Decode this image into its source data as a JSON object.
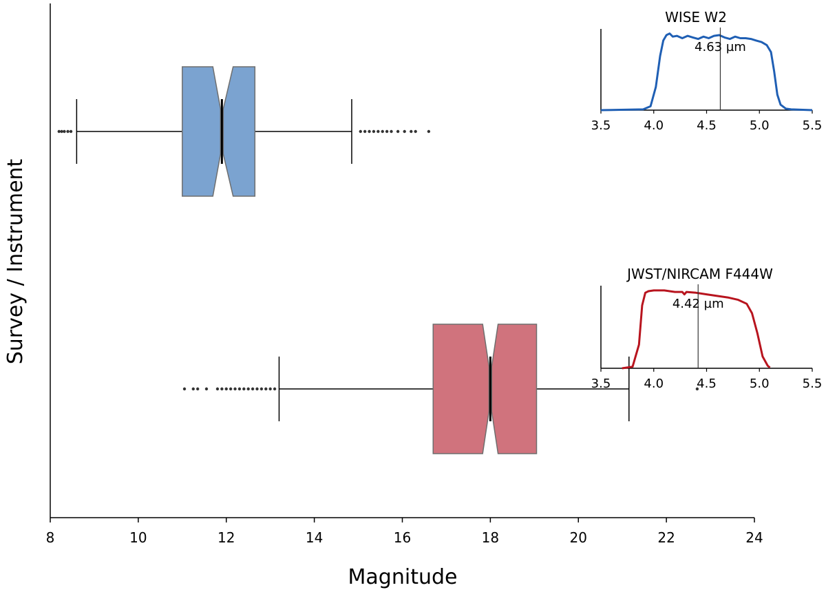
{
  "chart_data": {
    "type": "boxplot",
    "xlabel": "Magnitude",
    "ylabel": "Survey / Instrument",
    "xlim": [
      8,
      24
    ],
    "xticks": [
      8,
      10,
      12,
      14,
      16,
      18,
      20,
      22,
      24
    ],
    "horizontal": true,
    "notched": true,
    "boxes": [
      {
        "name": "WISE W2",
        "color": "#7BA3D0",
        "q1": 11.0,
        "median": 11.9,
        "q3": 12.65,
        "notch_low": 11.82,
        "notch_high": 12.03,
        "whisker_low": 8.6,
        "whisker_high": 14.85,
        "outliers": [
          8.2,
          8.26,
          8.32,
          8.4,
          8.47,
          15.05,
          15.15,
          15.25,
          15.35,
          15.45,
          15.55,
          15.65,
          15.75,
          15.9,
          16.05,
          16.2,
          16.3,
          16.6
        ]
      },
      {
        "name": "JWST/NIRCAM F444W",
        "color": "#D0737D",
        "q1": 16.7,
        "median": 18.0,
        "q3": 19.05,
        "notch_low": 17.95,
        "notch_high": 18.05,
        "whisker_low": 13.2,
        "whisker_high": 21.15,
        "outliers": [
          11.05,
          11.25,
          11.35,
          11.55,
          11.8,
          11.9,
          12.0,
          12.1,
          12.2,
          12.3,
          12.4,
          12.5,
          12.6,
          12.7,
          12.8,
          12.9,
          13.0,
          13.1,
          22.7
        ]
      }
    ],
    "insets": [
      {
        "title": "WISE W2",
        "annotation": "4.63 µm",
        "center": 4.63,
        "color": "#1F5FB4",
        "xlim": [
          3.5,
          5.5
        ],
        "ylim": [
          0,
          1.05
        ],
        "xticks": [
          "3.5",
          "4.0",
          "4.5",
          "5.0",
          "5.5"
        ],
        "curve": {
          "x": [
            3.5,
            3.9,
            3.97,
            4.02,
            4.06,
            4.09,
            4.12,
            4.15,
            4.18,
            4.22,
            4.27,
            4.32,
            4.37,
            4.42,
            4.47,
            4.52,
            4.57,
            4.62,
            4.67,
            4.72,
            4.77,
            4.82,
            4.87,
            4.92,
            4.97,
            5.02,
            5.07,
            5.11,
            5.14,
            5.17,
            5.2,
            5.25,
            5.3,
            5.5
          ],
          "y": [
            0.0,
            0.01,
            0.05,
            0.3,
            0.7,
            0.9,
            0.97,
            0.99,
            0.95,
            0.96,
            0.93,
            0.96,
            0.94,
            0.92,
            0.95,
            0.93,
            0.96,
            0.97,
            0.94,
            0.92,
            0.95,
            0.93,
            0.93,
            0.92,
            0.9,
            0.88,
            0.84,
            0.75,
            0.5,
            0.2,
            0.07,
            0.02,
            0.01,
            0.0
          ]
        }
      },
      {
        "title": "JWST/NIRCAM F444W",
        "annotation": "4.42 µm",
        "center": 4.42,
        "color": "#B8141E",
        "xlim": [
          3.5,
          5.5
        ],
        "ylim": [
          0,
          1.05
        ],
        "xticks": [
          "3.5",
          "4.0",
          "4.5",
          "5.0",
          "5.5"
        ],
        "curve": {
          "x": [
            3.7,
            3.8,
            3.86,
            3.89,
            3.92,
            3.95,
            4.0,
            4.1,
            4.2,
            4.27,
            4.29,
            4.31,
            4.4,
            4.5,
            4.6,
            4.7,
            4.8,
            4.88,
            4.93,
            4.98,
            5.03,
            5.08,
            5.1
          ],
          "y": [
            0.0,
            0.02,
            0.3,
            0.8,
            0.96,
            0.98,
            0.99,
            0.99,
            0.97,
            0.97,
            0.94,
            0.97,
            0.96,
            0.94,
            0.92,
            0.9,
            0.87,
            0.82,
            0.7,
            0.45,
            0.15,
            0.03,
            0.01
          ]
        }
      }
    ]
  }
}
